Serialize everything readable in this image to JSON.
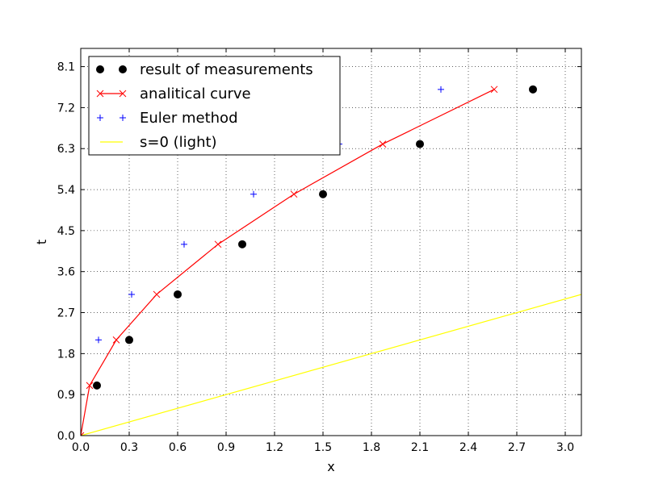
{
  "chart_data": {
    "type": "scatter",
    "title": "",
    "xlabel": "x",
    "ylabel": "t",
    "xlim": [
      0.0,
      3.1
    ],
    "ylim": [
      0.0,
      8.5
    ],
    "x_ticks": [
      0.0,
      0.3,
      0.6,
      0.9,
      1.2,
      1.5,
      1.8,
      2.1,
      2.4,
      2.7,
      3.0
    ],
    "x_tick_labels": [
      "0.0",
      "0.3",
      "0.6",
      "0.9",
      "1.2",
      "1.5",
      "1.8",
      "2.1",
      "2.4",
      "2.7",
      "3.0"
    ],
    "y_ticks": [
      0.0,
      0.9,
      1.8,
      2.7,
      3.6,
      4.5,
      5.4,
      6.3,
      7.2,
      8.1
    ],
    "y_tick_labels": [
      "0.0",
      "0.9",
      "1.8",
      "2.7",
      "3.6",
      "4.5",
      "5.4",
      "6.3",
      "7.2",
      "8.1"
    ],
    "grid": true,
    "legend_position": "top-left",
    "series": [
      {
        "name": "result of measurements",
        "kind": "marker",
        "marker": "circle",
        "color": "#000000",
        "x": [
          0.1,
          0.3,
          0.6,
          1.0,
          1.5,
          2.1,
          2.8
        ],
        "y": [
          1.1,
          2.1,
          3.1,
          4.2,
          5.3,
          6.4,
          7.6
        ]
      },
      {
        "name": "analitical curve",
        "kind": "line-marker",
        "marker": "x",
        "color": "#ff0000",
        "x": [
          0.0,
          0.055,
          0.22,
          0.47,
          0.85,
          1.32,
          1.87,
          2.56
        ],
        "y": [
          0.0,
          1.1,
          2.1,
          3.1,
          4.2,
          5.3,
          6.4,
          7.6
        ]
      },
      {
        "name": "Euler method",
        "kind": "marker",
        "marker": "plus",
        "color": "#0000ff",
        "x": [
          0.0,
          0.11,
          0.315,
          0.64,
          1.07,
          1.6,
          2.23
        ],
        "y": [
          0.0,
          2.1,
          3.1,
          4.2,
          5.3,
          6.4,
          7.6
        ]
      },
      {
        "name": "s=0 (light)",
        "kind": "line",
        "color": "#ffff00",
        "x": [
          0.0,
          3.1
        ],
        "y": [
          0.0,
          3.1
        ]
      }
    ]
  }
}
